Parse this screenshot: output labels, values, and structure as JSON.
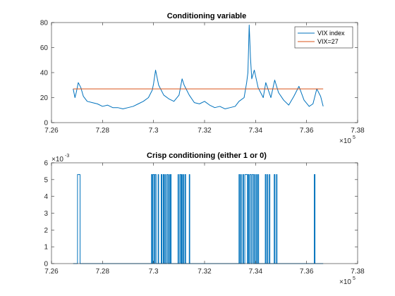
{
  "chart_data": [
    {
      "type": "line",
      "title": "Conditioning variable",
      "xlabel": "",
      "ylabel": "",
      "x_multiplier_label": "×10",
      "x_multiplier_exponent": "5",
      "xlim": [
        7.26,
        7.38
      ],
      "ylim": [
        0,
        80
      ],
      "xticks": [
        "7.26",
        "7.28",
        "7.3",
        "7.32",
        "7.34",
        "7.36",
        "7.38"
      ],
      "yticks": [
        "0",
        "20",
        "40",
        "60",
        "80"
      ],
      "legend_position": "top-right",
      "grid": false,
      "series": [
        {
          "name": "VIX index",
          "color": "#0072BD",
          "x": [
            7.2685,
            7.2692,
            7.2697,
            7.2705,
            7.2715,
            7.2725,
            7.274,
            7.276,
            7.278,
            7.28,
            7.282,
            7.284,
            7.286,
            7.288,
            7.29,
            7.292,
            7.294,
            7.296,
            7.298,
            7.2995,
            7.3,
            7.3008,
            7.302,
            7.304,
            7.306,
            7.308,
            7.31,
            7.3112,
            7.312,
            7.314,
            7.316,
            7.318,
            7.32,
            7.322,
            7.324,
            7.326,
            7.328,
            7.33,
            7.332,
            7.3335,
            7.3355,
            7.3365,
            7.337,
            7.3375,
            7.338,
            7.3385,
            7.3395,
            7.341,
            7.343,
            7.344,
            7.346,
            7.3475,
            7.349,
            7.351,
            7.353,
            7.355,
            7.357,
            7.359,
            7.361,
            7.3625,
            7.364,
            7.3655,
            7.3665
          ],
          "values": [
            27,
            20,
            24,
            32,
            28,
            21,
            17,
            16,
            15,
            13,
            14,
            12,
            12,
            11,
            12,
            13,
            15,
            17,
            20,
            26,
            31,
            42,
            30,
            22,
            19,
            17,
            22,
            35,
            30,
            22,
            16,
            15,
            17,
            14,
            12,
            13,
            11,
            12,
            13,
            17,
            20,
            32,
            40,
            78,
            52,
            35,
            42,
            28,
            20,
            32,
            20,
            34,
            24,
            18,
            14,
            21,
            29,
            18,
            13,
            15,
            27,
            21,
            13
          ]
        },
        {
          "name": "VIX=27",
          "color": "#D95319",
          "x": [
            7.2685,
            7.3665
          ],
          "values": [
            27,
            27
          ]
        }
      ]
    },
    {
      "type": "line",
      "title": "Crisp conditioning (either 1 or 0)",
      "xlabel": "",
      "ylabel": "",
      "x_multiplier_label": "×10",
      "x_multiplier_exponent": "5",
      "y_multiplier_label": "×10",
      "y_multiplier_exponent": "-3",
      "xlim": [
        7.26,
        7.38
      ],
      "ylim": [
        0,
        6
      ],
      "xticks": [
        "7.26",
        "7.28",
        "7.3",
        "7.32",
        "7.34",
        "7.36",
        "7.38"
      ],
      "yticks": [
        "0",
        "1",
        "2",
        "3",
        "4",
        "5",
        "6"
      ],
      "grid": false,
      "series": [
        {
          "name": "",
          "color": "#0072BD",
          "level": 5.3,
          "active_intervals": [
            [
              7.2702,
              7.2712
            ],
            [
              7.2992,
              7.2995
            ],
            [
              7.2998,
              7.3003
            ],
            [
              7.3006,
              7.301
            ],
            [
              7.3018,
              7.302
            ],
            [
              7.303,
              7.3033
            ],
            [
              7.3038,
              7.3041
            ],
            [
              7.3045,
              7.3047
            ],
            [
              7.3052,
              7.3056
            ],
            [
              7.306,
              7.3062
            ],
            [
              7.3066,
              7.3069
            ],
            [
              7.3096,
              7.3098
            ],
            [
              7.3103,
              7.3107
            ],
            [
              7.311,
              7.3112
            ],
            [
              7.3116,
              7.3118
            ],
            [
              7.3123,
              7.3126
            ],
            [
              7.314,
              7.3142
            ],
            [
              7.3335,
              7.3338
            ],
            [
              7.3342,
              7.3344
            ],
            [
              7.335,
              7.3353
            ],
            [
              7.3358,
              7.3368
            ],
            [
              7.3371,
              7.3374
            ],
            [
              7.3378,
              7.3383
            ],
            [
              7.3387,
              7.3392
            ],
            [
              7.3396,
              7.3399
            ],
            [
              7.3404,
              7.3406
            ],
            [
              7.341,
              7.3412
            ],
            [
              7.3438,
              7.3441
            ],
            [
              7.3446,
              7.3448
            ],
            [
              7.3454,
              7.3456
            ],
            [
              7.3473,
              7.3476
            ],
            [
              7.3482,
              7.3484
            ],
            [
              7.363,
              7.3633
            ]
          ],
          "x_start": 7.2685,
          "x_end": 7.3665
        }
      ]
    }
  ]
}
